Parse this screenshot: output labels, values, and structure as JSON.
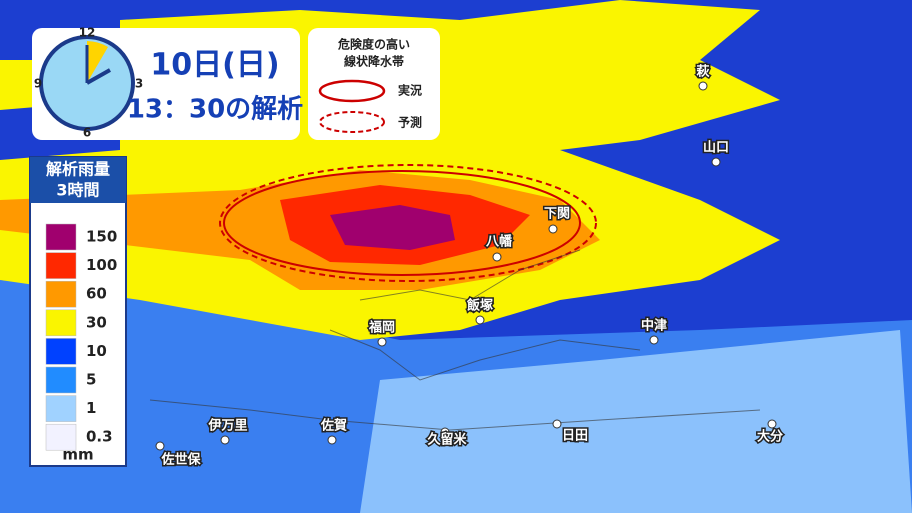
{
  "clock": {
    "numbers": [
      "12",
      "3",
      "6",
      "9"
    ],
    "date": "10日(日)",
    "time": "13：30の解析"
  },
  "band_legend": {
    "title": [
      "危険度の高い",
      "線状降水帯"
    ],
    "observed": "実況",
    "forecast": "予測"
  },
  "rain_legend": {
    "title": [
      "解析雨量",
      "3時間"
    ],
    "unit": "mm",
    "items": [
      {
        "label": "150",
        "color": "#a0006e"
      },
      {
        "label": "100",
        "color": "#ff2800"
      },
      {
        "label": "60",
        "color": "#ff9900"
      },
      {
        "label": "30",
        "color": "#faf500"
      },
      {
        "label": "10",
        "color": "#0041ff"
      },
      {
        "label": "5",
        "color": "#218cff"
      },
      {
        "label": "1",
        "color": "#a0d2ff"
      },
      {
        "label": "0.3",
        "color": "#f2f2ff"
      }
    ]
  },
  "cities": [
    "萩",
    "山口",
    "下関",
    "八幡",
    "飯塚",
    "福岡",
    "中津",
    "伊万里",
    "佐賀",
    "久留米",
    "日田",
    "大分",
    "佐世保"
  ]
}
